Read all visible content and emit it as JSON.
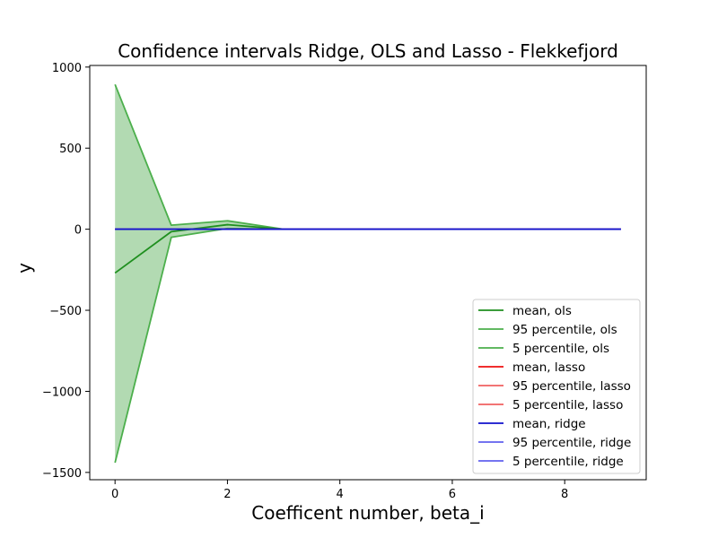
{
  "chart_data": {
    "type": "line",
    "title": "Confidence intervals Ridge, OLS and Lasso - Flekkefjord",
    "xlabel": "Coefficent number, beta_i",
    "ylabel": "y",
    "xlim": [
      -0.45,
      9.45
    ],
    "ylim": [
      -1545,
      1010
    ],
    "xticks": [
      0,
      2,
      4,
      6,
      8
    ],
    "yticks": [
      -1500,
      -1000,
      -500,
      0,
      500,
      1000
    ],
    "x": [
      0,
      1,
      2,
      3,
      4,
      5,
      6,
      7,
      8,
      9
    ],
    "grid": false,
    "legend_position": "lower-right",
    "series": [
      {
        "name": "mean, ols",
        "color": "#1f8f1f",
        "opacity": 1.0,
        "values": [
          -270,
          -15,
          28,
          0,
          0,
          0,
          0,
          0,
          0,
          0
        ]
      },
      {
        "name": "95 percentile, ols",
        "color": "#4caf4c",
        "opacity": 1.0,
        "values": [
          893,
          25,
          52,
          0,
          0,
          0,
          0,
          0,
          0,
          0
        ]
      },
      {
        "name": "5 percentile, ols",
        "color": "#4caf4c",
        "opacity": 1.0,
        "values": [
          -1440,
          -50,
          5,
          0,
          0,
          0,
          0,
          0,
          0,
          0
        ]
      },
      {
        "name": "mean, lasso",
        "color": "#ee1111",
        "opacity": 1.0,
        "values": [
          0,
          0,
          0,
          0,
          0,
          0,
          0,
          0,
          0,
          0
        ]
      },
      {
        "name": "95 percentile, lasso",
        "color": "#f06060",
        "opacity": 1.0,
        "values": [
          0,
          0,
          0,
          0,
          0,
          0,
          0,
          0,
          0,
          0
        ]
      },
      {
        "name": "5 percentile, lasso",
        "color": "#f06060",
        "opacity": 1.0,
        "values": [
          0,
          0,
          0,
          0,
          0,
          0,
          0,
          0,
          0,
          0
        ]
      },
      {
        "name": "mean, ridge",
        "color": "#1111cc",
        "opacity": 1.0,
        "values": [
          0,
          0,
          0,
          0,
          0,
          0,
          0,
          0,
          0,
          0
        ]
      },
      {
        "name": "95 percentile, ridge",
        "color": "#6060ee",
        "opacity": 1.0,
        "values": [
          0,
          0,
          0,
          0,
          0,
          0,
          0,
          0,
          0,
          0
        ]
      },
      {
        "name": "5 percentile, ridge",
        "color": "#6060ee",
        "opacity": 1.0,
        "values": [
          0,
          0,
          0,
          0,
          0,
          0,
          0,
          0,
          0,
          0
        ]
      }
    ],
    "fill_between": {
      "upper": "95 percentile, ols",
      "lower": "5 percentile, ols",
      "color": "#b2dab2"
    }
  }
}
